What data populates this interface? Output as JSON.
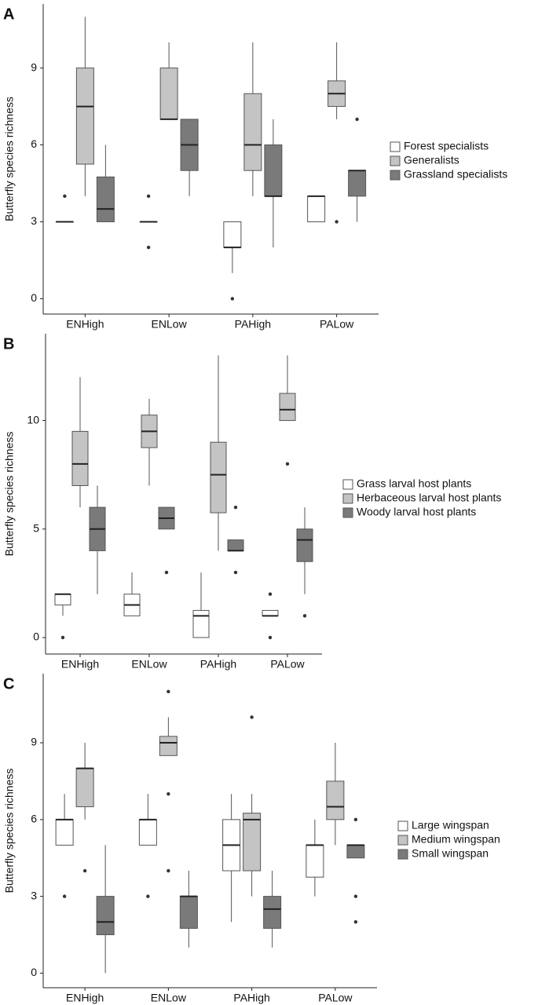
{
  "chart_data": [
    {
      "type": "box",
      "panel": "A",
      "ylabel": "Butterfly species richness",
      "categories": [
        "ENHigh",
        "ENLow",
        "PAHigh",
        "PALow"
      ],
      "ylim": [
        -0.6,
        11.5
      ],
      "yticks": [
        0,
        3,
        6,
        9
      ],
      "series": [
        {
          "name": "Forest specialists",
          "color": "#ffffff",
          "values": [
            {
              "min": 3,
              "q1": 3,
              "median": 3,
              "q3": 3,
              "max": 3,
              "outliers": [
                4
              ]
            },
            {
              "min": 3,
              "q1": 3,
              "median": 3,
              "q3": 3,
              "max": 3,
              "outliers": [
                4,
                2
              ]
            },
            {
              "min": 1,
              "q1": 2,
              "median": 2,
              "q3": 3,
              "max": 3,
              "outliers": [
                0
              ]
            },
            {
              "min": 3,
              "q1": 3,
              "median": 4,
              "q3": 4,
              "max": 4
            }
          ]
        },
        {
          "name": "Generalists",
          "color": "#c4c4c4",
          "values": [
            {
              "min": 4,
              "q1": 5.25,
              "median": 7.5,
              "q3": 9,
              "max": 11
            },
            {
              "min": 7,
              "q1": 7,
              "median": 7,
              "q3": 9,
              "max": 10
            },
            {
              "min": 4,
              "q1": 5,
              "median": 6,
              "q3": 8,
              "max": 10
            },
            {
              "min": 7,
              "q1": 7.5,
              "median": 8,
              "q3": 8.5,
              "max": 10,
              "outliers": [
                3
              ]
            }
          ]
        },
        {
          "name": "Grassland specialists",
          "color": "#7a7a7a",
          "values": [
            {
              "min": 3,
              "q1": 3,
              "median": 3.5,
              "q3": 4.75,
              "max": 6
            },
            {
              "min": 4,
              "q1": 5,
              "median": 6,
              "q3": 7,
              "max": 7
            },
            {
              "min": 2,
              "q1": 4,
              "median": 4,
              "q3": 6,
              "max": 7
            },
            {
              "min": 3,
              "q1": 4,
              "median": 5,
              "q3": 5,
              "max": 5,
              "outliers": [
                7
              ]
            }
          ]
        }
      ]
    },
    {
      "type": "box",
      "panel": "B",
      "ylabel": "Butterfly species richness",
      "categories": [
        "ENHigh",
        "ENLow",
        "PAHigh",
        "PALow"
      ],
      "ylim": [
        -0.76,
        14
      ],
      "yticks": [
        0,
        5,
        10
      ],
      "series": [
        {
          "name": "Grass larval host plants",
          "color": "#ffffff",
          "values": [
            {
              "min": 1,
              "q1": 1.5,
              "median": 2,
              "q3": 2,
              "max": 2,
              "outliers": [
                0
              ]
            },
            {
              "min": 1,
              "q1": 1,
              "median": 1.5,
              "q3": 2,
              "max": 3
            },
            {
              "min": 0,
              "q1": 0,
              "median": 1,
              "q3": 1.25,
              "max": 3
            },
            {
              "min": 1,
              "q1": 1,
              "median": 1,
              "q3": 1.25,
              "max": 1.25,
              "outliers": [
                2,
                0
              ]
            }
          ]
        },
        {
          "name": "Herbaceous larval host plants",
          "color": "#c4c4c4",
          "values": [
            {
              "min": 6,
              "q1": 7,
              "median": 8,
              "q3": 9.5,
              "max": 12
            },
            {
              "min": 7,
              "q1": 8.75,
              "median": 9.5,
              "q3": 10.25,
              "max": 11
            },
            {
              "min": 4,
              "q1": 5.75,
              "median": 7.5,
              "q3": 9,
              "max": 13
            },
            {
              "min": 10,
              "q1": 10,
              "median": 10.5,
              "q3": 11.25,
              "max": 13,
              "outliers": [
                8
              ]
            }
          ]
        },
        {
          "name": "Woody larval host plants",
          "color": "#7a7a7a",
          "values": [
            {
              "min": 2,
              "q1": 4,
              "median": 5,
              "q3": 6,
              "max": 7
            },
            {
              "min": 5,
              "q1": 5,
              "median": 5.5,
              "q3": 6,
              "max": 6,
              "outliers": [
                3
              ]
            },
            {
              "min": 4,
              "q1": 4,
              "median": 4,
              "q3": 4.5,
              "max": 4.5,
              "outliers": [
                6,
                3
              ]
            },
            {
              "min": 2,
              "q1": 3.5,
              "median": 4.5,
              "q3": 5,
              "max": 6,
              "outliers": [
                1
              ]
            }
          ]
        }
      ]
    },
    {
      "type": "box",
      "panel": "C",
      "ylabel": "Butterfly species richness",
      "categories": [
        "ENHigh",
        "ENLow",
        "PAHigh",
        "PALow"
      ],
      "ylim": [
        -0.57,
        11.7
      ],
      "yticks": [
        0,
        3,
        6,
        9
      ],
      "series": [
        {
          "name": "Large wingspan",
          "color": "#ffffff",
          "values": [
            {
              "min": 5,
              "q1": 5,
              "median": 6,
              "q3": 6,
              "max": 7,
              "outliers": [
                3
              ]
            },
            {
              "min": 5,
              "q1": 5,
              "median": 6,
              "q3": 6,
              "max": 7,
              "outliers": [
                3
              ]
            },
            {
              "min": 2,
              "q1": 4,
              "median": 5,
              "q3": 6,
              "max": 7
            },
            {
              "min": 3,
              "q1": 3.75,
              "median": 5,
              "q3": 5,
              "max": 6
            }
          ]
        },
        {
          "name": "Medium wingspan",
          "color": "#c4c4c4",
          "values": [
            {
              "min": 6,
              "q1": 6.5,
              "median": 8,
              "q3": 8,
              "max": 9,
              "outliers": [
                4
              ]
            },
            {
              "min": 8.5,
              "q1": 8.5,
              "median": 9,
              "q3": 9.25,
              "max": 10,
              "outliers": [
                11,
                7,
                4
              ]
            },
            {
              "min": 3,
              "q1": 4,
              "median": 6,
              "q3": 6.25,
              "max": 7,
              "outliers": [
                10
              ]
            },
            {
              "min": 5,
              "q1": 6,
              "median": 6.5,
              "q3": 7.5,
              "max": 9
            }
          ]
        },
        {
          "name": "Small wingspan",
          "color": "#7a7a7a",
          "values": [
            {
              "min": 0,
              "q1": 1.5,
              "median": 2,
              "q3": 3,
              "max": 5
            },
            {
              "min": 1,
              "q1": 1.75,
              "median": 3,
              "q3": 3,
              "max": 4
            },
            {
              "min": 1,
              "q1": 1.75,
              "median": 2.5,
              "q3": 3,
              "max": 4
            },
            {
              "min": 4.5,
              "q1": 4.5,
              "median": 5,
              "q3": 5,
              "max": 5,
              "outliers": [
                6,
                3,
                2
              ]
            }
          ]
        }
      ]
    }
  ]
}
